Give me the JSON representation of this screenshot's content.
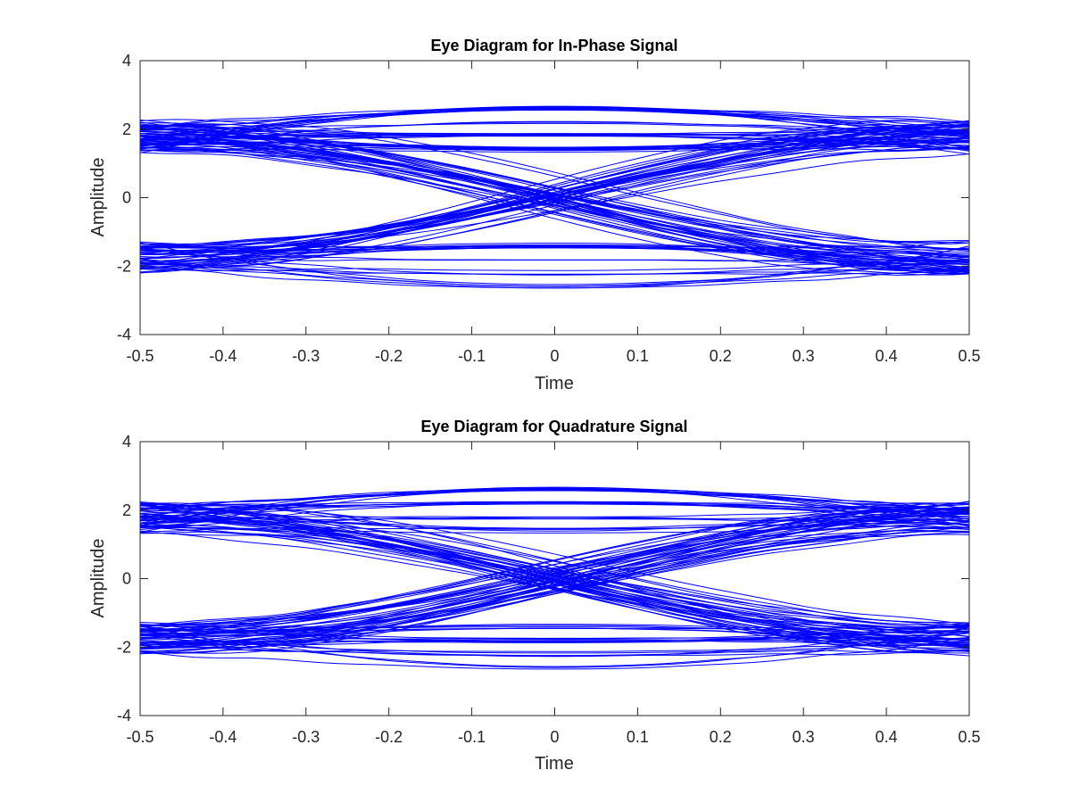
{
  "figure": {
    "background": "#ffffff",
    "trace_color": "#0000ff",
    "axis_color": "#262626"
  },
  "chart_data": [
    {
      "type": "line",
      "chart_kind": "eye-diagram",
      "title": "Eye Diagram for In-Phase Signal",
      "xlabel": "Time",
      "ylabel": "Amplitude",
      "xlim": [
        -0.5,
        0.5
      ],
      "ylim": [
        -4,
        4
      ],
      "xticks": [
        "-0.5",
        "-0.4",
        "-0.3",
        "-0.2",
        "-0.1",
        "0",
        "0.1",
        "0.2",
        "0.3",
        "0.4",
        "0.5"
      ],
      "yticks": [
        "-4",
        "-2",
        "0",
        "2",
        "4"
      ],
      "grid": false,
      "box": true,
      "legend": "none",
      "series_color": "#0000ff",
      "symbol_period": [
        -0.5,
        0.5
      ],
      "eye_center_x": 0,
      "eye_open_levels": [
        -2.6,
        -2.2,
        -1.8,
        -1.4,
        1.4,
        1.8,
        2.2,
        2.6
      ],
      "edge_amplitude_range": [
        [
          -2.2,
          -1.3
        ],
        [
          1.3,
          2.3
        ]
      ],
      "crossing_amplitude_range": [
        -0.6,
        0.6
      ]
    },
    {
      "type": "line",
      "chart_kind": "eye-diagram",
      "title": "Eye Diagram for Quadrature Signal",
      "xlabel": "Time",
      "ylabel": "Amplitude",
      "xlim": [
        -0.5,
        0.5
      ],
      "ylim": [
        -4,
        4
      ],
      "xticks": [
        "-0.5",
        "-0.4",
        "-0.3",
        "-0.2",
        "-0.1",
        "0",
        "0.1",
        "0.2",
        "0.3",
        "0.4",
        "0.5"
      ],
      "yticks": [
        "-4",
        "-2",
        "0",
        "2",
        "4"
      ],
      "grid": false,
      "box": true,
      "legend": "none",
      "series_color": "#0000ff",
      "symbol_period": [
        -0.5,
        0.5
      ],
      "eye_center_x": 0,
      "eye_open_levels": [
        -2.6,
        -2.2,
        -1.8,
        -1.4,
        1.4,
        1.8,
        2.2,
        2.6
      ],
      "edge_amplitude_range": [
        [
          -2.3,
          -1.3
        ],
        [
          1.3,
          2.3
        ]
      ],
      "crossing_amplitude_range": [
        -0.6,
        0.6
      ]
    }
  ]
}
